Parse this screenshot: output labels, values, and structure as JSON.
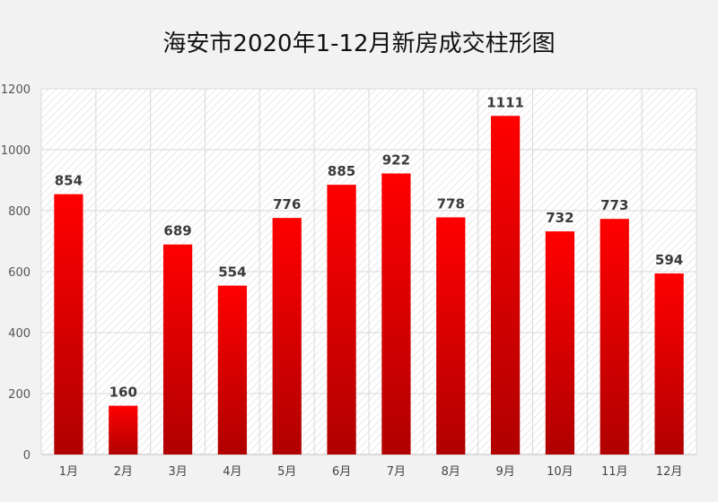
{
  "chart_data": {
    "type": "bar",
    "title": "海安市2020年1-12月新房成交柱形图",
    "categories": [
      "1月",
      "2月",
      "3月",
      "4月",
      "5月",
      "6月",
      "7月",
      "8月",
      "9月",
      "10月",
      "11月",
      "12月"
    ],
    "values": [
      854,
      160,
      689,
      554,
      776,
      885,
      922,
      778,
      1111,
      732,
      773,
      594
    ],
    "ylim": [
      0,
      1200
    ],
    "yticks": [
      0,
      200,
      400,
      600,
      800,
      1000,
      1200
    ],
    "xlabel": "",
    "ylabel": "",
    "grid": true,
    "legend": "none",
    "bar_color_top": "#ff0000",
    "bar_color_bottom": "#b00000"
  }
}
